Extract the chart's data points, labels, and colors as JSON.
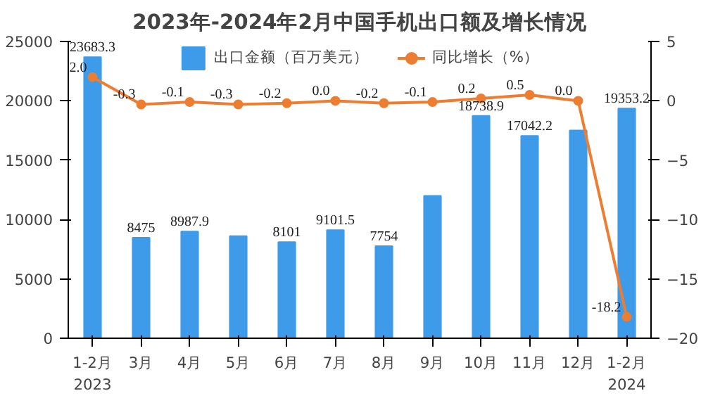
{
  "chart_data": {
    "type": "bar",
    "title": "2023年-2024年2月中国手机出口额及增长情况",
    "categories": [
      "1-2月\n2023",
      "3月",
      "4月",
      "5月",
      "6月",
      "7月",
      "8月",
      "9月",
      "10月",
      "11月",
      "12月",
      "1-2月\n2024"
    ],
    "series": [
      {
        "name": "出口金额（百万美元）",
        "color": "#3d9be9",
        "values": [
          23683.3,
          8475,
          8987.9,
          8600,
          8101,
          9101.5,
          7754,
          12000,
          18738.9,
          17042.2,
          17500,
          19353.2
        ],
        "value_labels": [
          "23683.3",
          "8475",
          "8987.9",
          null,
          "8101",
          "9101.5",
          "7754",
          null,
          "18738.9",
          "17042.2",
          null,
          "19353.2"
        ]
      },
      {
        "name": "同比增长（%）",
        "type": "line",
        "axis": "y2",
        "color": "#ed7d31",
        "values": [
          2.0,
          -0.3,
          -0.1,
          -0.3,
          -0.2,
          0.0,
          -0.2,
          -0.1,
          0.2,
          0.5,
          0.0,
          -18.2
        ],
        "value_labels": [
          "2.0",
          "-0.3",
          "-0.1",
          "-0.3",
          "-0.2",
          "0.0",
          "-0.2",
          "-0.1",
          "0.2",
          "0.5",
          "0.0",
          "-18.2"
        ]
      }
    ],
    "ylim": [
      0,
      25000
    ],
    "yticks": [
      0,
      5000,
      10000,
      15000,
      20000,
      25000
    ],
    "y2lim": [
      -20,
      5
    ],
    "y2ticks": [
      -20,
      -15,
      -10,
      -5,
      0,
      5
    ],
    "legend": "top",
    "marker": "circle"
  }
}
